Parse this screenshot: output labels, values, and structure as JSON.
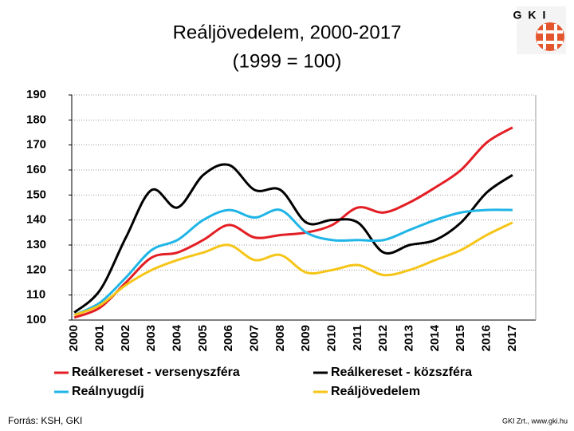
{
  "chart_data": {
    "type": "line",
    "title": "Reáljövedelem, 2000-2017",
    "subtitle": "(1999 = 100)",
    "logo": "GKI",
    "source": "Forrás: KSH, GKI",
    "credit": "GKI Zrt., www.gki.hu",
    "categories": [
      "2000",
      "2001",
      "2002",
      "2003",
      "2004",
      "2005",
      "2006",
      "2007",
      "2008",
      "2009",
      "2010",
      "2011",
      "2012",
      "2013",
      "2014",
      "2015",
      "2016",
      "2017"
    ],
    "series": [
      {
        "name": "Reálkereset - versenyszféra",
        "color": "#e31e24",
        "values": [
          101,
          105,
          115,
          125,
          127,
          132,
          138,
          133,
          134,
          135,
          138,
          145,
          143,
          147,
          153,
          160,
          171,
          177
        ]
      },
      {
        "name": "Reálkereset - közszféra",
        "color": "#000000",
        "values": [
          103,
          112,
          133,
          152,
          145,
          158,
          162,
          152,
          152,
          139,
          140,
          139,
          127,
          130,
          132,
          139,
          151,
          158
        ]
      },
      {
        "name": "Reálnyugdíj",
        "color": "#1fb5e6",
        "values": [
          102,
          107,
          117,
          128,
          132,
          140,
          144,
          141,
          144,
          135,
          132,
          132,
          132,
          136,
          140,
          143,
          144,
          144
        ]
      },
      {
        "name": "Reáljövedelem",
        "color": "#f5c518",
        "values": [
          102,
          106,
          114,
          120,
          124,
          127,
          130,
          124,
          126,
          119,
          120,
          122,
          118,
          120,
          124,
          128,
          134,
          139
        ]
      }
    ],
    "ylim": [
      100,
      190
    ],
    "yticks": [
      100,
      110,
      120,
      130,
      140,
      150,
      160,
      170,
      180,
      190
    ],
    "grid": true
  }
}
